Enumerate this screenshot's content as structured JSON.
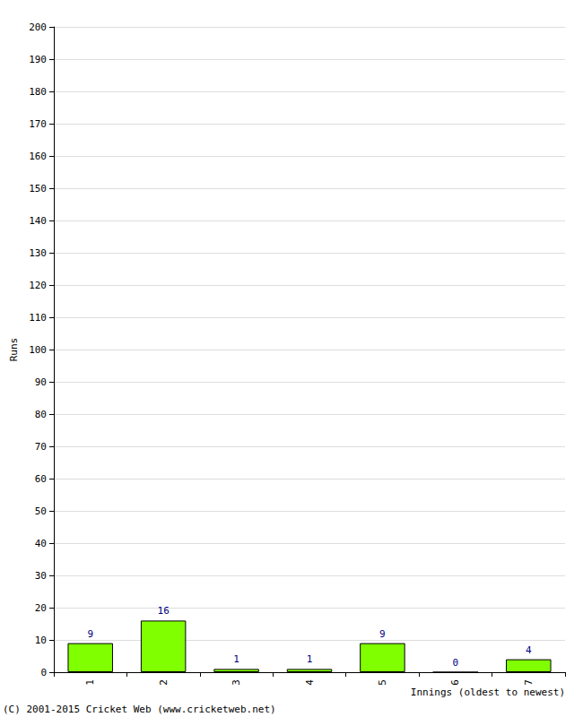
{
  "chart_data": {
    "type": "bar",
    "categories": [
      "1",
      "2",
      "3",
      "4",
      "5",
      "6",
      "7"
    ],
    "values": [
      9,
      16,
      1,
      1,
      9,
      0,
      4
    ],
    "color": "#80ff00",
    "xlabel": "Innings (oldest to newest)",
    "ylabel": "Runs",
    "ylim": [
      0,
      200
    ],
    "yticks": [
      0,
      10,
      20,
      30,
      40,
      50,
      60,
      70,
      80,
      90,
      100,
      110,
      120,
      130,
      140,
      150,
      160,
      170,
      180,
      190,
      200
    ],
    "grid": true,
    "data_labels": true,
    "annotations": [
      "(C) 2001-2015 Cricket Web (www.cricketweb.net)"
    ]
  }
}
